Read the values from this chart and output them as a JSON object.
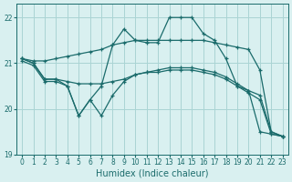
{
  "xlabel": "Humidex (Indice chaleur)",
  "background_color": "#d9f0f0",
  "grid_color": "#aad4d4",
  "line_color": "#1a6b6b",
  "xlim": [
    -0.5,
    23.5
  ],
  "ylim": [
    19.0,
    22.3
  ],
  "yticks": [
    19,
    20,
    21,
    22
  ],
  "xticks": [
    0,
    1,
    2,
    3,
    4,
    5,
    6,
    7,
    8,
    9,
    10,
    11,
    12,
    13,
    14,
    15,
    16,
    17,
    18,
    19,
    20,
    21,
    22,
    23
  ],
  "lines": [
    {
      "x": [
        0,
        1,
        2,
        3,
        4,
        5,
        6,
        7,
        8,
        9,
        10,
        11,
        12,
        13,
        14,
        15,
        16,
        17,
        18,
        19,
        20,
        21,
        22,
        23
      ],
      "y": [
        21.1,
        21.05,
        21.05,
        21.1,
        21.15,
        21.2,
        21.25,
        21.3,
        21.4,
        21.45,
        21.5,
        21.5,
        21.5,
        21.5,
        21.5,
        21.5,
        21.5,
        21.45,
        21.4,
        21.35,
        21.3,
        20.85,
        19.5,
        19.4
      ]
    },
    {
      "x": [
        0,
        1,
        2,
        3,
        4,
        5,
        6,
        7,
        8,
        9,
        10,
        11,
        12,
        13,
        14,
        15,
        16,
        17,
        18,
        19,
        20,
        21,
        22,
        23
      ],
      "y": [
        21.1,
        21.0,
        20.65,
        20.65,
        20.6,
        20.55,
        20.55,
        20.55,
        20.6,
        20.65,
        20.75,
        20.8,
        20.85,
        20.9,
        20.9,
        20.9,
        20.85,
        20.8,
        20.7,
        20.55,
        20.4,
        20.3,
        19.5,
        19.4
      ]
    },
    {
      "x": [
        0,
        1,
        2,
        3,
        4,
        5,
        6,
        7,
        8,
        9,
        10,
        11,
        12,
        13,
        14,
        15,
        16,
        17,
        18,
        19,
        20,
        21,
        22,
        23
      ],
      "y": [
        21.05,
        20.95,
        20.6,
        20.6,
        20.5,
        19.85,
        20.2,
        19.85,
        20.3,
        20.6,
        20.75,
        20.8,
        20.8,
        20.85,
        20.85,
        20.85,
        20.8,
        20.75,
        20.65,
        20.5,
        20.35,
        20.2,
        19.45,
        19.4
      ]
    },
    {
      "x": [
        0,
        1,
        2,
        3,
        4,
        5,
        6,
        7,
        8,
        9,
        10,
        11,
        12,
        13,
        14,
        15,
        16,
        17,
        18,
        19,
        20,
        21,
        22,
        23
      ],
      "y": [
        21.1,
        21.0,
        20.65,
        20.65,
        20.5,
        19.85,
        20.2,
        20.5,
        21.4,
        21.75,
        21.5,
        21.45,
        21.45,
        22.0,
        22.0,
        22.0,
        21.65,
        21.5,
        21.1,
        20.5,
        20.4,
        19.5,
        19.45,
        19.4
      ]
    }
  ]
}
